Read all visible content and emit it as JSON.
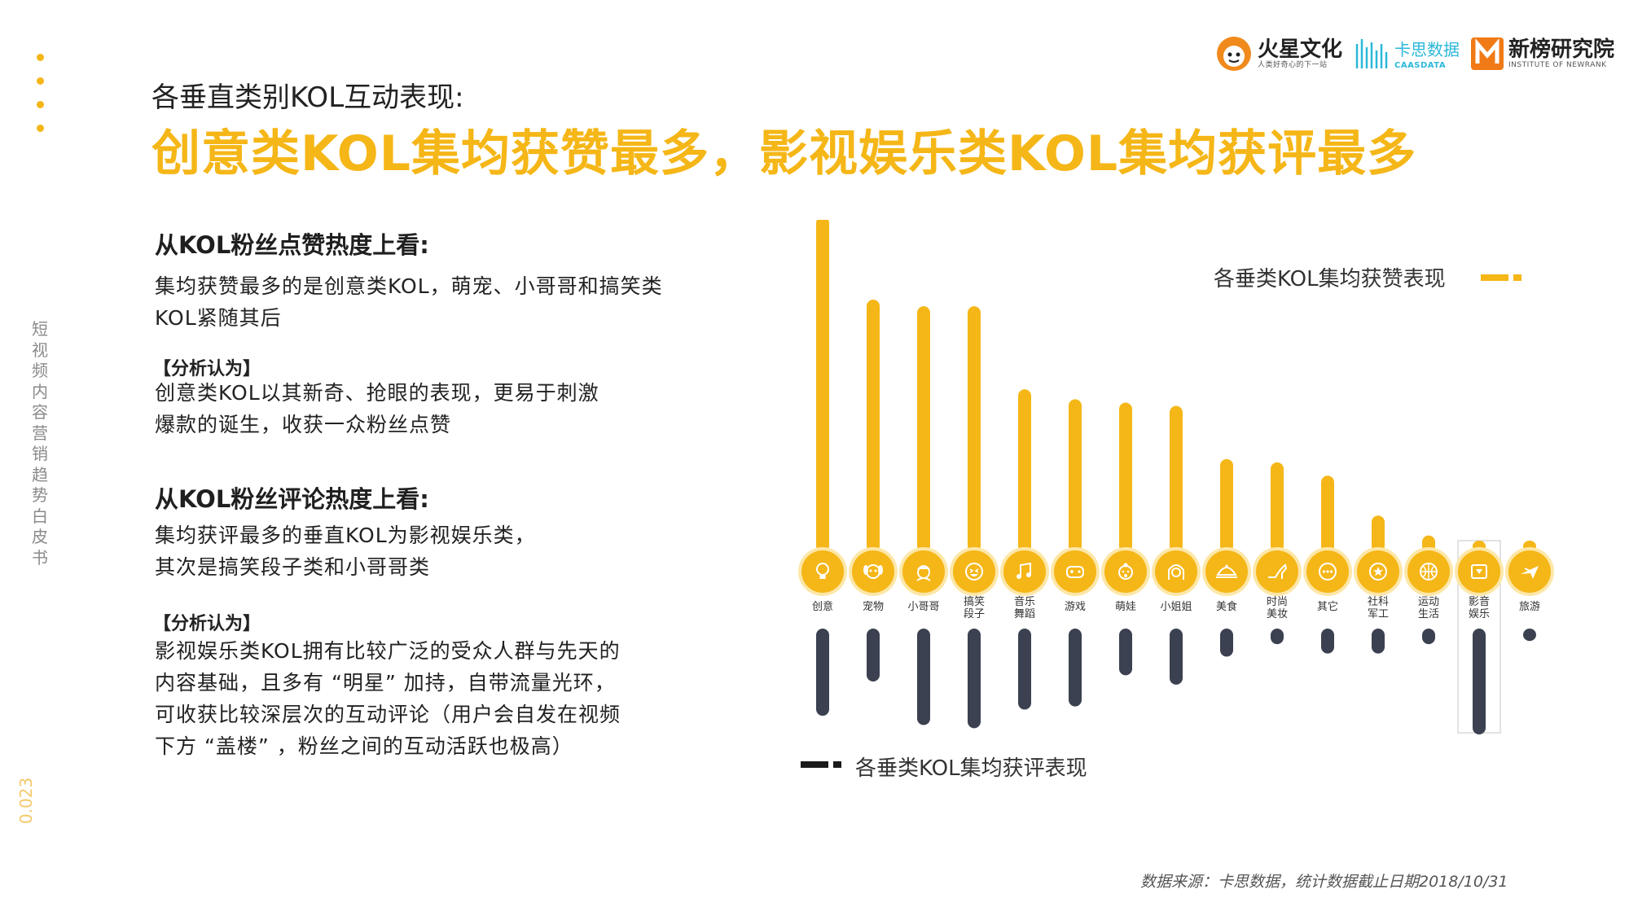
{
  "rail": {
    "vertical_text": "短视频内容营销趋势白皮书",
    "page_number": "0.023"
  },
  "logos": {
    "huoxing": {
      "name": "火星文化",
      "tagline": "人类好奇心的下一站"
    },
    "caas": {
      "name": "卡思数据",
      "tagline": "CAASDATA"
    },
    "newrank": {
      "name": "新榜研究院",
      "tagline": "INSTITUTE OF NEWRANK"
    }
  },
  "header": {
    "subtitle": "各垂直类别KOL互动表现:",
    "title": "创意类KOL集均获赞最多，影视娱乐类KOL集均获评最多"
  },
  "section1": {
    "heading": "从KOL粉丝点赞热度上看:",
    "body_line1": "集均获赞最多的是创意类KOL，萌宠、小哥哥和搞笑类",
    "body_line2": "KOL紧随其后",
    "tag": "【分析认为】",
    "analysis_line1": "创意类KOL以其新奇、抢眼的表现，更易于刺激",
    "analysis_line2": "爆款的诞生，收获一众粉丝点赞"
  },
  "section2": {
    "heading": "从KOL粉丝评论热度上看:",
    "body_line1": "集均获评最多的垂直KOL为影视娱乐类，",
    "body_line2": "其次是搞笑段子类和小哥哥类",
    "tag": "【分析认为】",
    "analysis_line1": "影视娱乐类KOL拥有比较广泛的受众人群与先天的",
    "analysis_line2": "内容基础，且多有 “明星”  加持，自带流量光环，",
    "analysis_line3": "可收获比较深层次的互动评论（用户会自发在视频",
    "analysis_line4": "下方 “盖楼” ，粉丝之间的互动活跃也极高）"
  },
  "chart_data": {
    "type": "bar",
    "categories": [
      {
        "lines": [
          "创意"
        ],
        "icon": "lightbulb-icon"
      },
      {
        "lines": [
          "宠物"
        ],
        "icon": "dog-icon"
      },
      {
        "lines": [
          "小哥哥"
        ],
        "icon": "boy-icon"
      },
      {
        "lines": [
          "搞笑",
          "段子"
        ],
        "icon": "laugh-face-icon"
      },
      {
        "lines": [
          "音乐",
          "舞蹈"
        ],
        "icon": "music-note-icon"
      },
      {
        "lines": [
          "游戏"
        ],
        "icon": "gamepad-icon"
      },
      {
        "lines": [
          "萌娃"
        ],
        "icon": "baby-icon"
      },
      {
        "lines": [
          "小姐姐"
        ],
        "icon": "girl-icon"
      },
      {
        "lines": [
          "美食"
        ],
        "icon": "food-cloche-icon"
      },
      {
        "lines": [
          "时尚",
          "美妆"
        ],
        "icon": "high-heel-icon"
      },
      {
        "lines": [
          "其它"
        ],
        "icon": "more-dots-icon"
      },
      {
        "lines": [
          "社科",
          "军工"
        ],
        "icon": "star-badge-icon"
      },
      {
        "lines": [
          "运动",
          "生活"
        ],
        "icon": "ball-icon"
      },
      {
        "lines": [
          "影音",
          "娱乐"
        ],
        "icon": "tv-icon"
      },
      {
        "lines": [
          "旅游"
        ],
        "icon": "airplane-icon"
      }
    ],
    "series": [
      {
        "name": "各垂类KOL集均获赞表现",
        "color": "#f5b617",
        "values": [
          100,
          75,
          73,
          73,
          48,
          45,
          44,
          43,
          27,
          26,
          22,
          10,
          4,
          2,
          1
        ]
      },
      {
        "name": "各垂类KOL集均获评表现",
        "color": "#3b4150",
        "values": [
          28,
          17,
          31,
          32,
          26,
          25,
          15,
          18,
          9,
          5,
          8,
          8,
          5,
          34,
          4
        ]
      }
    ],
    "highlight_index": 13
  },
  "source": "数据来源：卡思数据，统计数据截止日期2018/10/31"
}
